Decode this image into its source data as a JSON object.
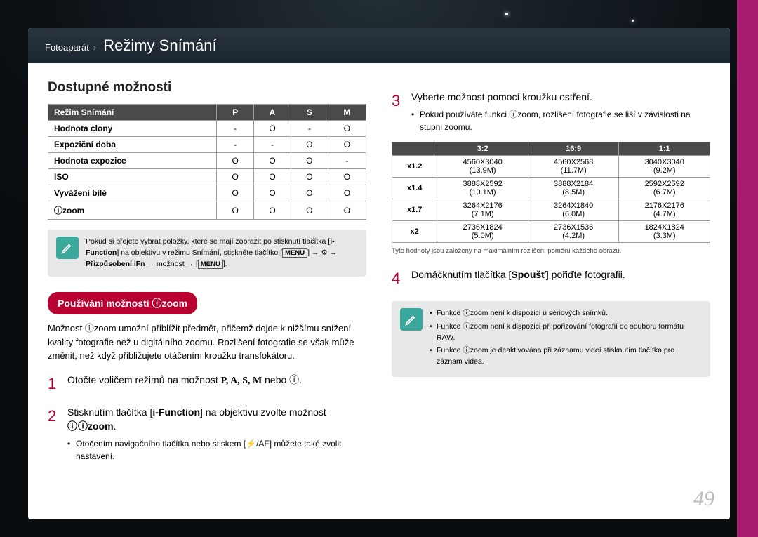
{
  "breadcrumb": {
    "parent": "Fotoaparát",
    "section": "Režimy Snímání"
  },
  "page_number": "49",
  "colors": {
    "accent_magenta": "#a91d6f",
    "heading_teal": "#3ba89e",
    "pill_red": "#b80031",
    "header_dark": "#4a4a4a"
  },
  "left": {
    "title": "Dostupné možnosti",
    "table": {
      "headers": [
        "Režim Snímání",
        "P",
        "A",
        "S",
        "M"
      ],
      "rows": [
        [
          "Hodnota clony",
          "-",
          "O",
          "-",
          "O"
        ],
        [
          "Expoziční doba",
          "-",
          "-",
          "O",
          "O"
        ],
        [
          "Hodnota expozice",
          "O",
          "O",
          "O",
          "-"
        ],
        [
          "ISO",
          "O",
          "O",
          "O",
          "O"
        ],
        [
          "Vyvážení bílé",
          "O",
          "O",
          "O",
          "O"
        ],
        [
          "ⓘzoom",
          "O",
          "O",
          "O",
          "O"
        ]
      ]
    },
    "note": {
      "line1": "Pokud si přejete vybrat položky, které se mají zobrazit po stisknutí tlačítka",
      "line2_pre": "[",
      "line2_bold": "i-Function",
      "line2_post": "] na objektivu v režimu Snímání, stiskněte tlačítko [",
      "menu1": "MENU",
      "line3_pre": "] → ",
      "line3_icon": "⚙",
      "line3_mid": " → ",
      "line3_bold": "Přizpůsobení iFn",
      "line3_post": " → možnost → [",
      "menu2": "MENU",
      "line3_end": "]."
    },
    "pill": "Používání možnosti ⓘzoom",
    "body": "Možnost ⓘzoom umožní přiblížit předmět, přičemž dojde k nižšímu snížení kvality fotografie než u digitálního zoomu. Rozlišení fotografie se však může změnit, než když přibližujete otáčením kroužku transfokátoru.",
    "step1": {
      "num": "1",
      "text_pre": "Otočte voličem režimů na možnost ",
      "modes": "P, A, S, M",
      "text_post": " nebo ⓘ."
    },
    "step2": {
      "num": "2",
      "text_pre": "Stisknutím tlačítka [",
      "bold": "i-Function",
      "text_mid": "] na objektivu zvolte možnost ",
      "izoom": "ⓘzoom",
      "text_post": ".",
      "bullet_pre": "Otočením navigačního tlačítka nebo stiskem [",
      "bullet_icon": "⚡/AF",
      "bullet_post": "] můžete také zvolit nastavení."
    }
  },
  "right": {
    "step3": {
      "num": "3",
      "text": "Vyberte možnost pomocí kroužku ostření.",
      "bullet_pre": "Pokud používáte funkci ",
      "bullet_izoom": "ⓘzoom",
      "bullet_post": ", rozlišení fotografie se liší v závislosti na stupni zoomu."
    },
    "res_table": {
      "headers": [
        "",
        "3:2",
        "16:9",
        "1:1"
      ],
      "rows": [
        {
          "label": "x1.2",
          "cells": [
            [
              "4560X3040",
              "(13.9M)"
            ],
            [
              "4560X2568",
              "(11.7M)"
            ],
            [
              "3040X3040",
              "(9.2M)"
            ]
          ]
        },
        {
          "label": "x1.4",
          "cells": [
            [
              "3888X2592",
              "(10.1M)"
            ],
            [
              "3888X2184",
              "(8.5M)"
            ],
            [
              "2592X2592",
              "(6.7M)"
            ]
          ]
        },
        {
          "label": "x1.7",
          "cells": [
            [
              "3264X2176",
              "(7.1M)"
            ],
            [
              "3264X1840",
              "(6.0M)"
            ],
            [
              "2176X2176",
              "(4.7M)"
            ]
          ]
        },
        {
          "label": "x2",
          "cells": [
            [
              "2736X1824",
              "(5.0M)"
            ],
            [
              "2736X1536",
              "(4.2M)"
            ],
            [
              "1824X1824",
              "(3.3M)"
            ]
          ]
        }
      ]
    },
    "footnote": "Tyto hodnoty jsou založeny na maximálním rozlišení poměru každého obrazu.",
    "step4": {
      "num": "4",
      "text_pre": "Domáčknutím tlačítka [",
      "bold": "Spoušť",
      "text_post": "] pořiďte fotografii."
    },
    "note_items": [
      "Funkce ⓘzoom není k dispozici u sériových snímků.",
      "Funkce ⓘzoom není k dispozici při pořizování fotografií do souboru formátu RAW.",
      "Funkce ⓘzoom je deaktivována při záznamu videí stisknutím tlačítka pro záznam videa."
    ]
  }
}
